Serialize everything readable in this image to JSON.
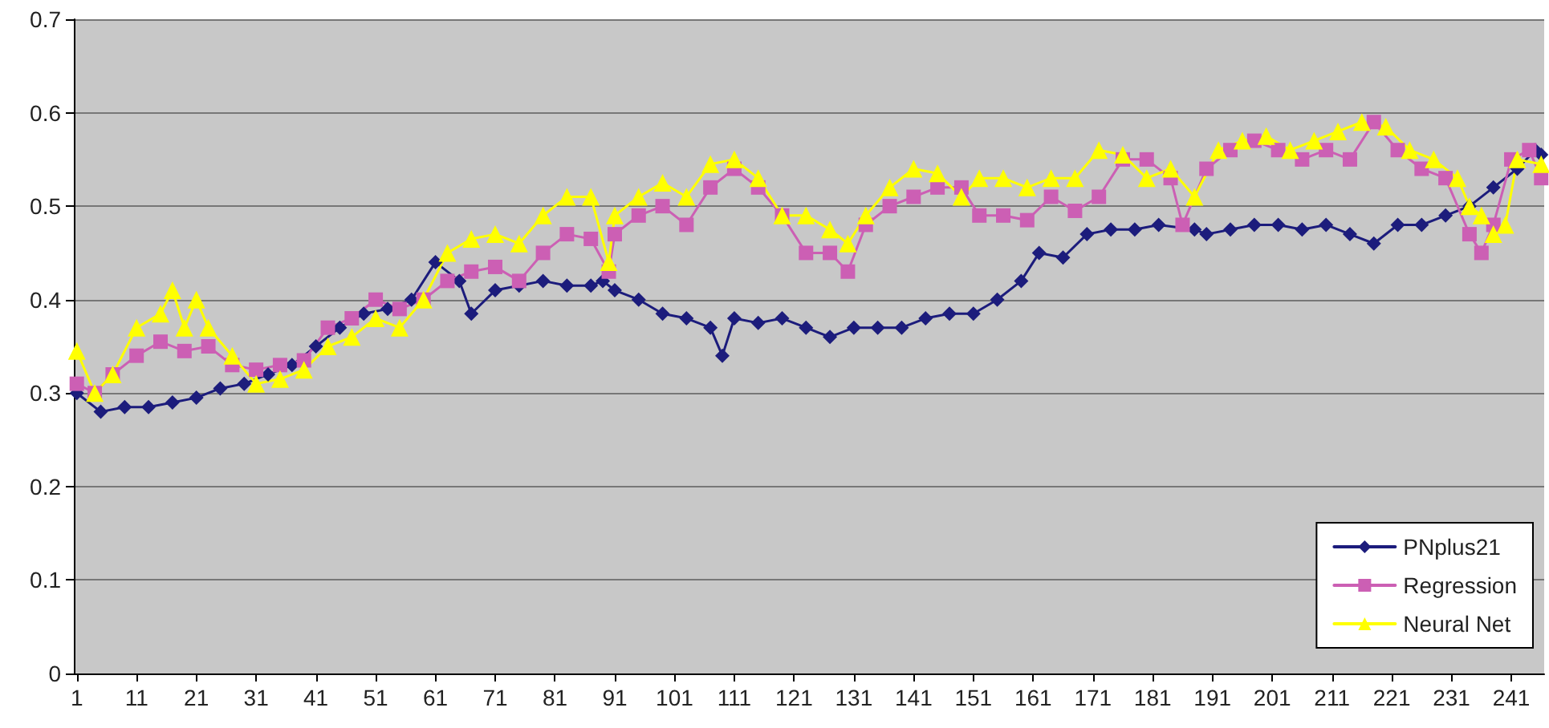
{
  "chart_data": {
    "type": "line",
    "xlim": [
      0.5,
      246.5
    ],
    "xticks": [
      1,
      11,
      21,
      31,
      41,
      51,
      61,
      71,
      81,
      91,
      101,
      111,
      121,
      131,
      141,
      151,
      161,
      171,
      181,
      191,
      201,
      211,
      221,
      231,
      241
    ],
    "ylim": [
      0,
      0.7
    ],
    "yticks": [
      0,
      0.1,
      0.2,
      0.3,
      0.4,
      0.5,
      0.6,
      0.7
    ],
    "grid": "y",
    "legend": "bottom right",
    "line_style": "solid",
    "series": [
      {
        "name": "PNplus21",
        "color": "#1c1c7c",
        "marker": "diamond",
        "x": [
          1,
          5,
          9,
          13,
          17,
          21,
          25,
          29,
          33,
          37,
          41,
          45,
          49,
          53,
          57,
          61,
          65,
          67,
          71,
          75,
          79,
          83,
          87,
          89,
          91,
          95,
          99,
          103,
          107,
          109,
          111,
          115,
          119,
          123,
          127,
          131,
          135,
          139,
          143,
          147,
          151,
          155,
          159,
          162,
          166,
          170,
          174,
          178,
          182,
          188,
          190,
          194,
          198,
          202,
          206,
          210,
          214,
          218,
          222,
          226,
          230,
          234,
          238,
          242,
          245,
          246
        ],
        "values": [
          0.3,
          0.28,
          0.285,
          0.285,
          0.29,
          0.295,
          0.305,
          0.31,
          0.32,
          0.33,
          0.35,
          0.37,
          0.385,
          0.39,
          0.4,
          0.44,
          0.42,
          0.385,
          0.41,
          0.415,
          0.42,
          0.415,
          0.415,
          0.42,
          0.41,
          0.4,
          0.385,
          0.38,
          0.37,
          0.34,
          0.38,
          0.375,
          0.38,
          0.37,
          0.36,
          0.37,
          0.37,
          0.37,
          0.38,
          0.385,
          0.385,
          0.4,
          0.42,
          0.45,
          0.445,
          0.47,
          0.475,
          0.475,
          0.48,
          0.475,
          0.47,
          0.475,
          0.48,
          0.48,
          0.475,
          0.48,
          0.47,
          0.46,
          0.48,
          0.48,
          0.49,
          0.5,
          0.52,
          0.54,
          0.56,
          0.555
        ]
      },
      {
        "name": "Regression",
        "color": "#cc5fb4",
        "marker": "square",
        "x": [
          1,
          4,
          7,
          11,
          15,
          19,
          23,
          27,
          31,
          35,
          39,
          43,
          47,
          51,
          55,
          59,
          63,
          67,
          71,
          75,
          79,
          83,
          87,
          90,
          91,
          95,
          99,
          103,
          107,
          111,
          115,
          119,
          123,
          127,
          130,
          133,
          137,
          141,
          145,
          149,
          152,
          156,
          160,
          164,
          168,
          172,
          176,
          180,
          184,
          186,
          190,
          194,
          198,
          202,
          206,
          210,
          214,
          218,
          222,
          226,
          230,
          234,
          236,
          238,
          241,
          244,
          246
        ],
        "values": [
          0.31,
          0.3,
          0.32,
          0.34,
          0.355,
          0.345,
          0.35,
          0.33,
          0.325,
          0.33,
          0.335,
          0.37,
          0.38,
          0.4,
          0.39,
          0.4,
          0.42,
          0.43,
          0.435,
          0.42,
          0.45,
          0.47,
          0.465,
          0.43,
          0.47,
          0.49,
          0.5,
          0.48,
          0.52,
          0.54,
          0.52,
          0.49,
          0.45,
          0.45,
          0.43,
          0.48,
          0.5,
          0.51,
          0.52,
          0.52,
          0.49,
          0.49,
          0.485,
          0.51,
          0.495,
          0.51,
          0.55,
          0.55,
          0.53,
          0.48,
          0.54,
          0.56,
          0.57,
          0.56,
          0.55,
          0.56,
          0.55,
          0.59,
          0.56,
          0.54,
          0.53,
          0.47,
          0.45,
          0.48,
          0.55,
          0.56,
          0.53
        ]
      },
      {
        "name": "Neural Net",
        "color": "#ffff00",
        "marker": "triangle",
        "x": [
          1,
          4,
          7,
          11,
          15,
          17,
          19,
          21,
          23,
          27,
          31,
          35,
          39,
          43,
          47,
          51,
          55,
          59,
          63,
          67,
          71,
          75,
          79,
          83,
          87,
          90,
          91,
          95,
          99,
          103,
          107,
          111,
          115,
          119,
          123,
          127,
          130,
          133,
          137,
          141,
          145,
          149,
          152,
          156,
          160,
          164,
          168,
          172,
          176,
          180,
          184,
          188,
          192,
          196,
          200,
          204,
          208,
          212,
          216,
          220,
          224,
          228,
          232,
          234,
          236,
          238,
          240,
          242,
          246
        ],
        "values": [
          0.345,
          0.3,
          0.32,
          0.37,
          0.385,
          0.41,
          0.37,
          0.4,
          0.37,
          0.34,
          0.31,
          0.315,
          0.325,
          0.35,
          0.36,
          0.38,
          0.37,
          0.4,
          0.45,
          0.465,
          0.47,
          0.46,
          0.49,
          0.51,
          0.51,
          0.44,
          0.49,
          0.51,
          0.525,
          0.51,
          0.545,
          0.55,
          0.53,
          0.49,
          0.49,
          0.475,
          0.46,
          0.49,
          0.52,
          0.54,
          0.535,
          0.51,
          0.53,
          0.53,
          0.52,
          0.53,
          0.53,
          0.56,
          0.555,
          0.53,
          0.54,
          0.51,
          0.56,
          0.57,
          0.575,
          0.56,
          0.57,
          0.58,
          0.59,
          0.585,
          0.56,
          0.55,
          0.53,
          0.5,
          0.49,
          0.47,
          0.48,
          0.55,
          0.545
        ]
      }
    ]
  }
}
